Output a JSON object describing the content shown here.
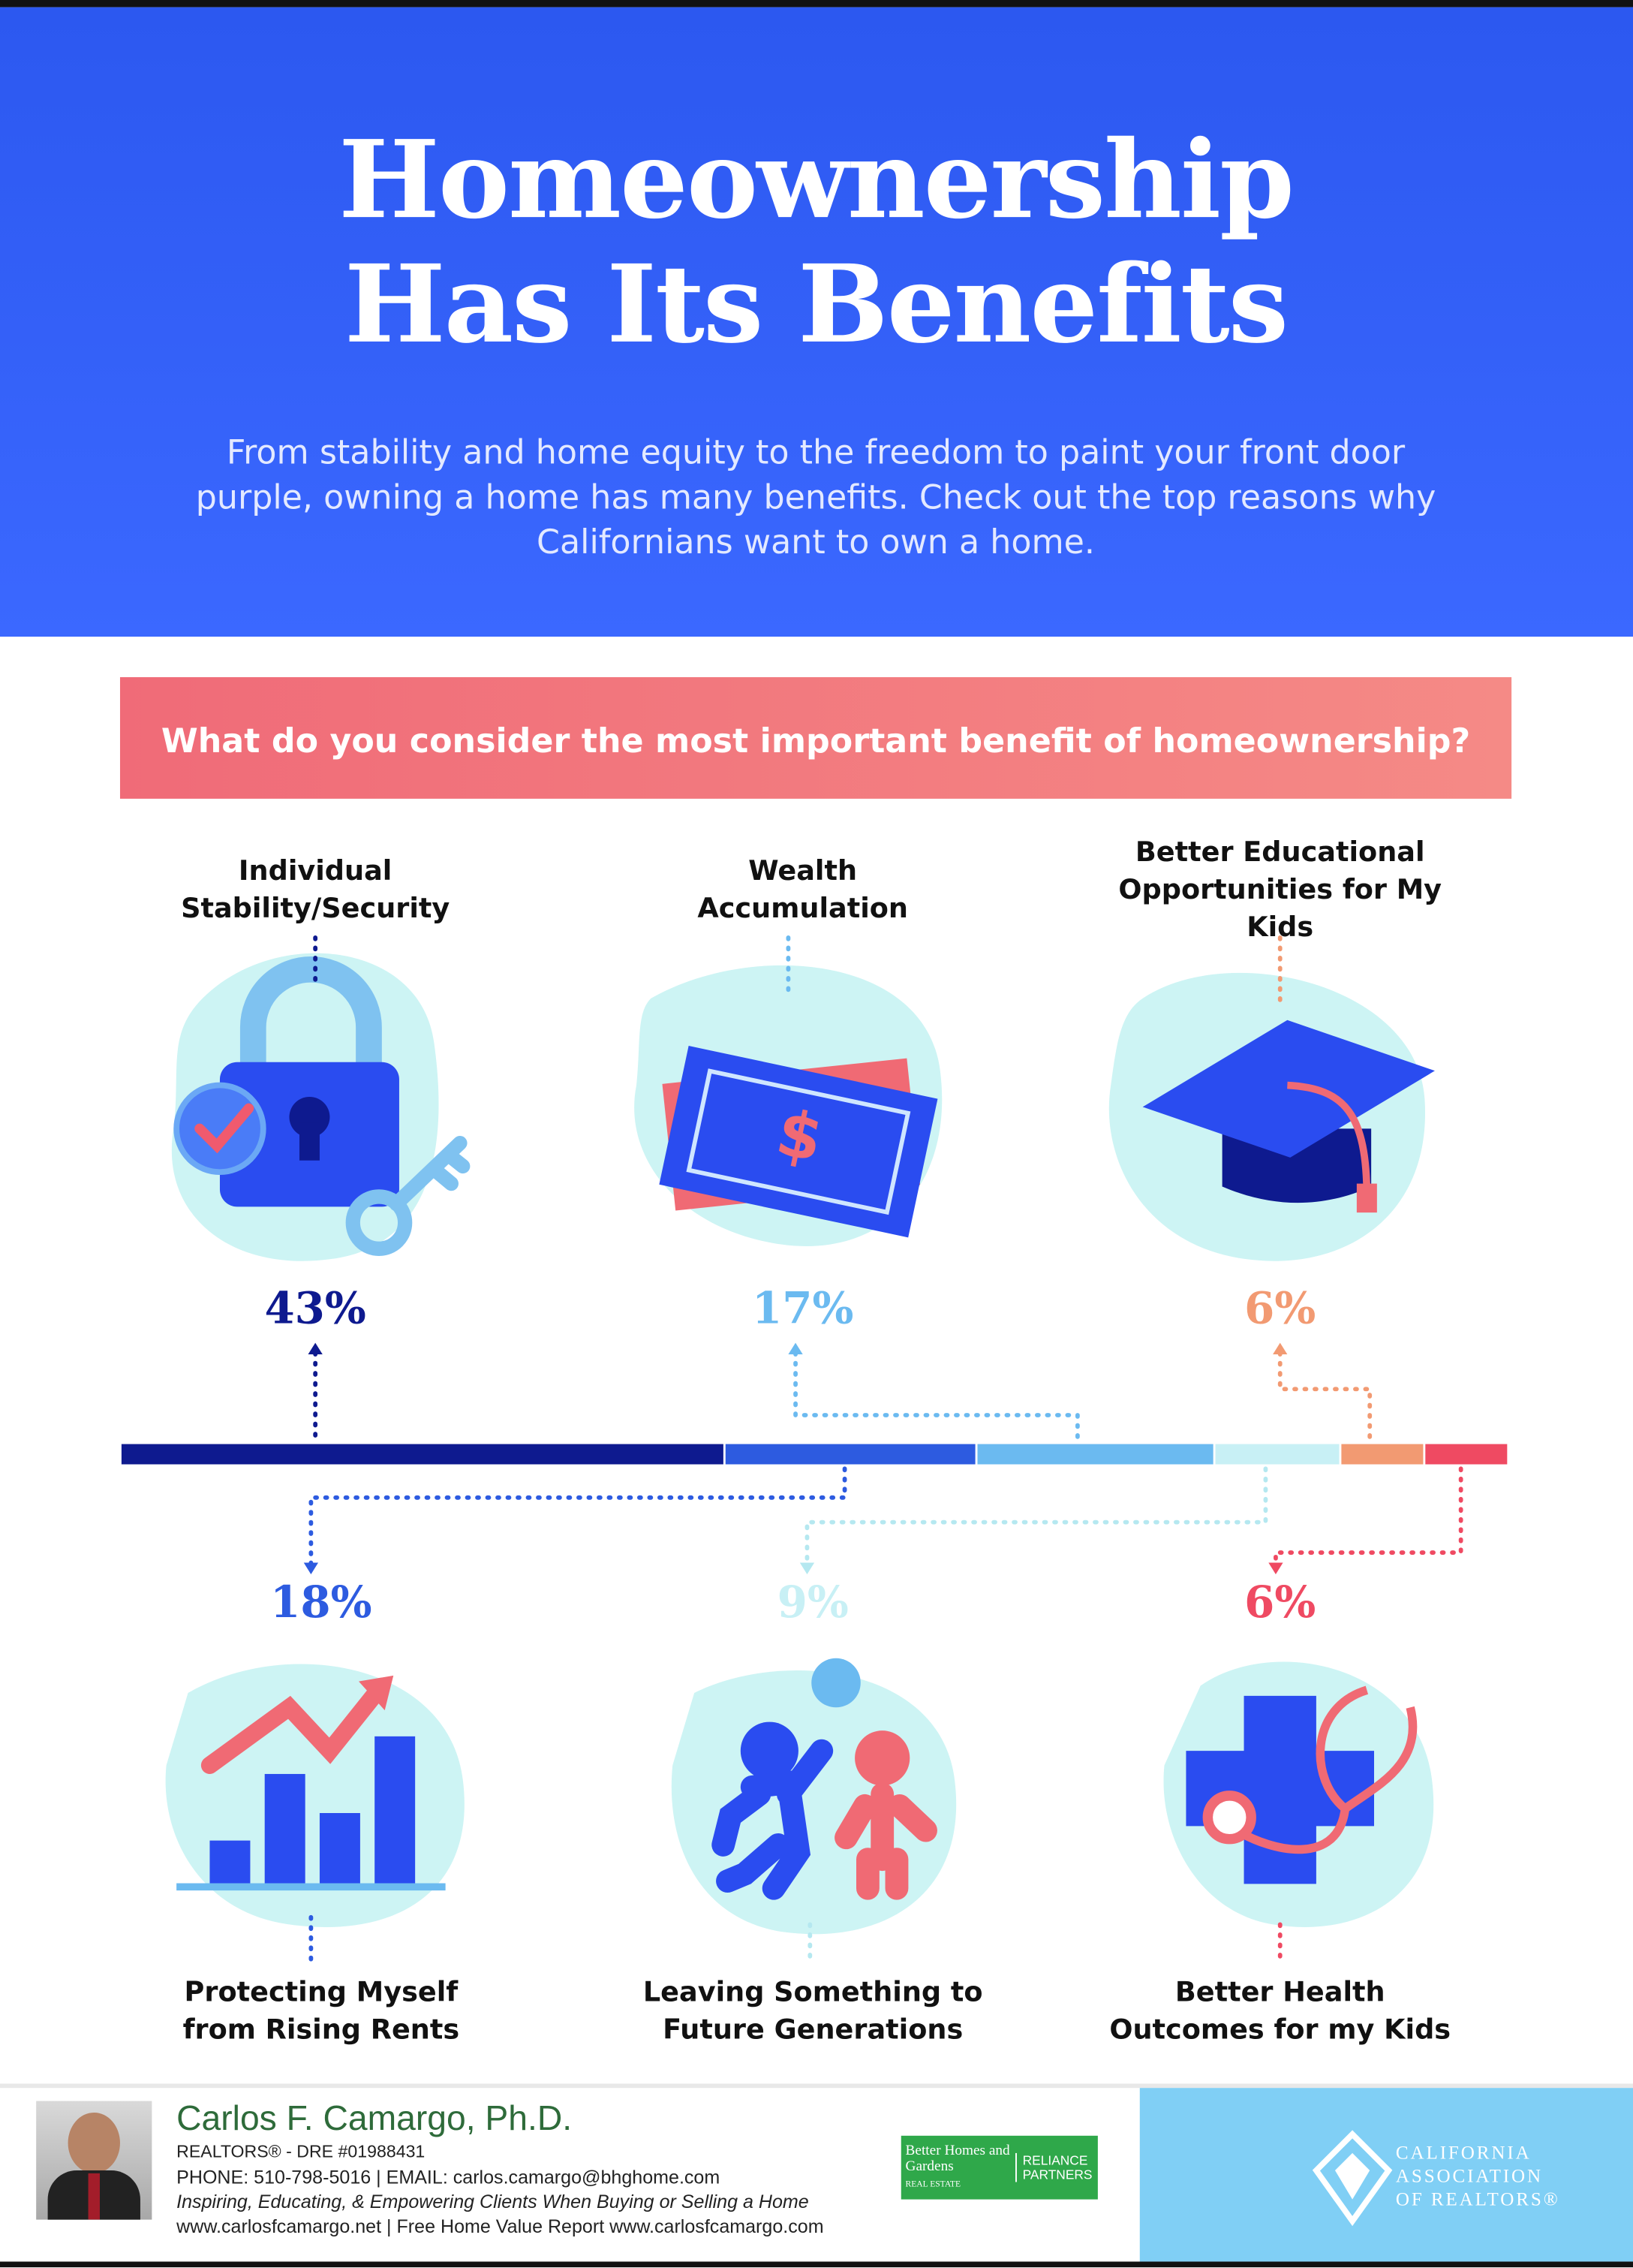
{
  "header": {
    "title": "Homeownership\nHas Its Benefits",
    "subtitle": "From stability and home equity to the freedom to paint your front door purple, owning a home has many benefits. Check out the top reasons why Californians want to own a home."
  },
  "chart_data": {
    "type": "stacked-bar",
    "title": "What do you consider the most important benefit of homeownership?",
    "categories": [
      "Individual\nStability/Security",
      "Protecting Myself\nfrom Rising Rents",
      "Wealth\nAccumulation",
      "Leaving Something to\nFuture Generations",
      "Better Educational\nOpportunities for My Kids",
      "Better Health\nOutcomes for my Kids"
    ],
    "values": [
      43,
      18,
      17,
      9,
      6,
      6
    ],
    "value_labels": [
      "43%",
      "18%",
      "17%",
      "9%",
      "6%",
      "6%"
    ],
    "colors": [
      "#0e1a8f",
      "#2d5be0",
      "#6bbaf0",
      "#c8f0f5",
      "#f29a72",
      "#ef4a62"
    ]
  },
  "footer": {
    "name": "Carlos F. Camargo, Ph.D.",
    "license": "REALTORS® - DRE #01988431",
    "contact": "PHONE: 510-798-5016 | EMAIL: carlos.camargo@bhghome.com",
    "tagline": "Inspiring, Educating, & Empowering Clients When Buying or Selling a Home",
    "websites": "www.carlosfcamargo.net | Free Home Value Report www.carlosfcamargo.com",
    "brokerage": {
      "brand": "Better Homes and Gardens",
      "sub": "REAL ESTATE",
      "office": "RELIANCE PARTNERS"
    },
    "association": "CALIFORNIA\nASSOCIATION\nOF REALTORS®"
  }
}
